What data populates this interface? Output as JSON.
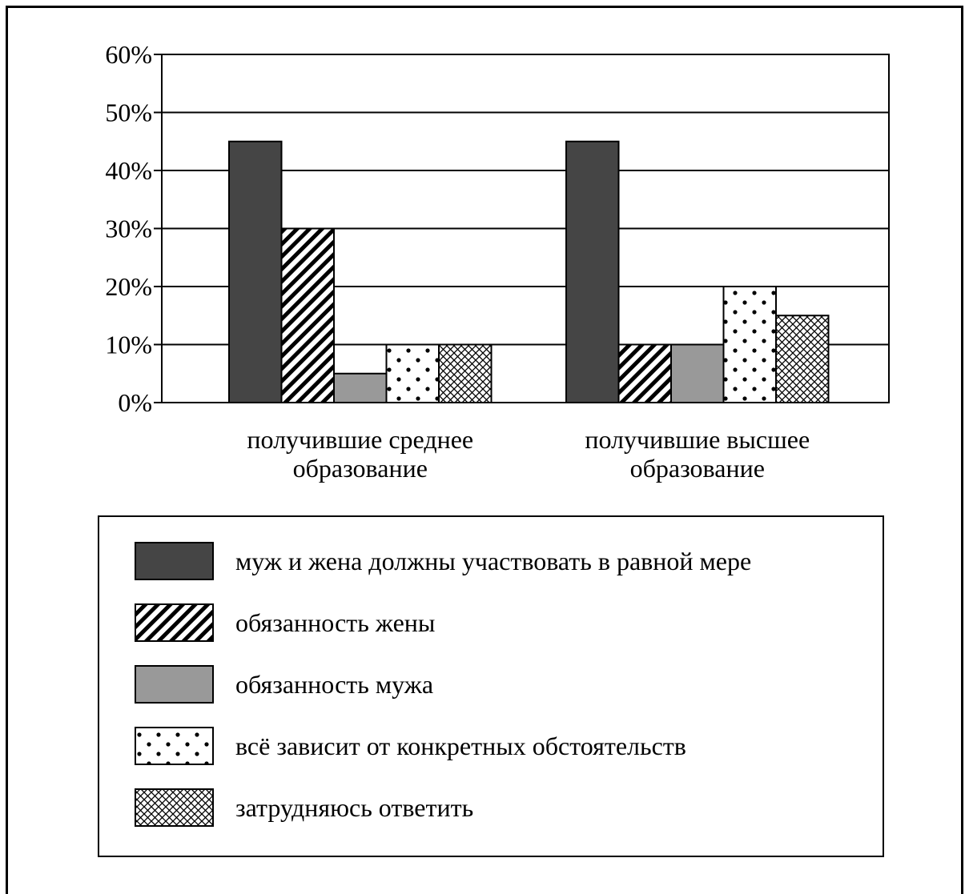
{
  "chart_data": {
    "type": "bar",
    "categories": [
      [
        "получившие среднее",
        "образование"
      ],
      [
        "получившие высшее",
        "образование"
      ]
    ],
    "series": [
      {
        "name": "муж и жена должны участвовать в равной мере",
        "pattern": "solid-dark",
        "values": [
          45,
          45
        ]
      },
      {
        "name": "обязанность жены",
        "pattern": "diagonal-hatch",
        "values": [
          30,
          10
        ]
      },
      {
        "name": "обязанность мужа",
        "pattern": "solid-gray",
        "values": [
          5,
          10
        ]
      },
      {
        "name": "всё зависит от конкретных обстоятельств",
        "pattern": "dots",
        "values": [
          10,
          20
        ]
      },
      {
        "name": "затрудняюсь ответить",
        "pattern": "crosshatch",
        "values": [
          10,
          15
        ]
      }
    ],
    "yticks": [
      "0%",
      "10%",
      "20%",
      "30%",
      "40%",
      "50%",
      "60%"
    ],
    "ylim": [
      0,
      60
    ],
    "grid": true,
    "legend_position": "bottom",
    "colors": {
      "dark": "#454545",
      "gray": "#999999",
      "ink": "#000000"
    }
  }
}
